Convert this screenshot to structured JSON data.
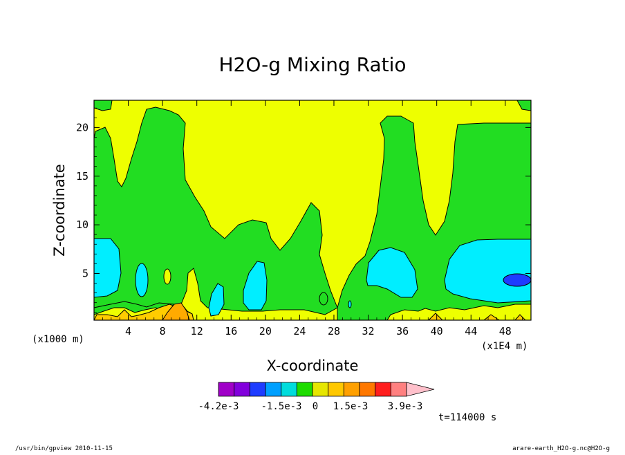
{
  "chart_data": {
    "type": "contour",
    "title": "H2O-g Mixing Ratio",
    "xlabel": "X-coordinate",
    "ylabel": "Z-coordinate",
    "x_unit": "(x1E4 m)",
    "y_unit": "(x1000 m)",
    "xlim": [
      0,
      51
    ],
    "ylim": [
      0.2,
      22.8
    ],
    "x_ticks": [
      4,
      8,
      12,
      16,
      20,
      24,
      28,
      32,
      36,
      40,
      44,
      48
    ],
    "y_ticks": [
      5,
      10,
      15,
      20
    ],
    "colorbar": {
      "labels": [
        "-4.2e-3",
        "-1.5e-3",
        "0",
        "1.5e-3",
        "3.9e-3"
      ],
      "colors": [
        "#a000c8",
        "#8200dc",
        "#1e3cff",
        "#00a0ff",
        "#00dcdc",
        "#1edc00",
        "#e6e600",
        "#ffc800",
        "#ffa000",
        "#ff7800",
        "#ff1e1e",
        "#ff8080",
        "#ffc0cb"
      ]
    },
    "time_label": "t=114000 s"
  },
  "footer": {
    "left": "/usr/bin/gpview  2010-11-15",
    "right": "arare-earth_H2O-g.nc@H2O-g"
  },
  "palette": {
    "yellow": "#eeff00",
    "green": "#22dd22",
    "cyan": "#00eeff",
    "blue": "#1e3cff",
    "gold": "#ffcc00",
    "orange": "#ffaa00"
  }
}
